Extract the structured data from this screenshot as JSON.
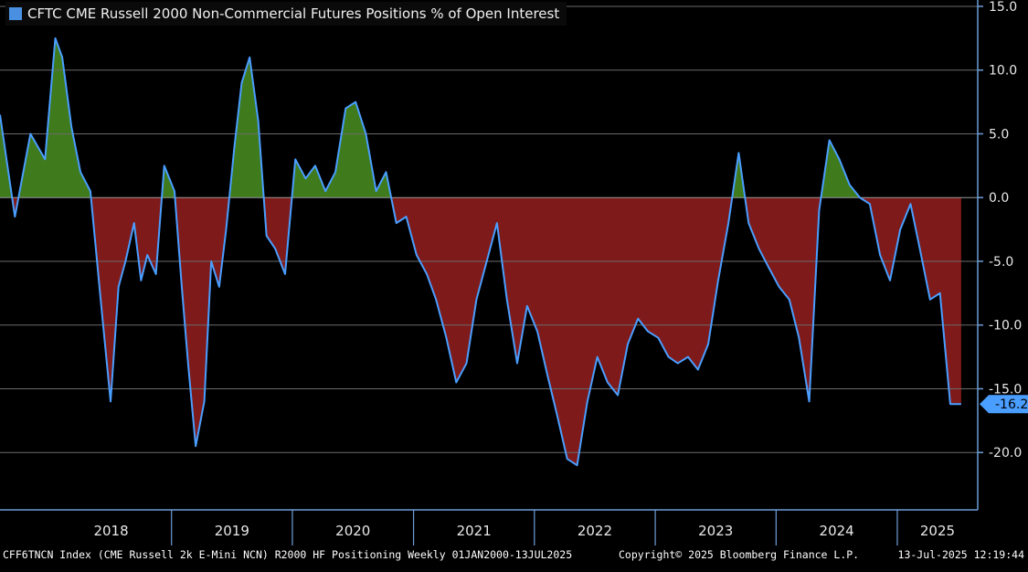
{
  "legend": {
    "label": "CFTC CME Russell 2000 Non-Commercial Futures Positions % of Open Interest",
    "color": "#4a90e2"
  },
  "footer": {
    "left": "CFF6TNCN Index (CME Russell 2k E-Mini NCN) R2000 HF Positioning  Weekly 01JAN2000-13JUL2025",
    "center": "Copyright© 2025 Bloomberg Finance L.P.",
    "right": "13-Jul-2025 12:19:44"
  },
  "last_value_label": "-16.2",
  "colors": {
    "line": "#4a9eff",
    "positive_fill": "#3f7a1c",
    "negative_fill": "#7f1a1a",
    "axis": "#6e9ed8",
    "grid": "#6a6a6a",
    "badge": "#4a9eff"
  },
  "chart_data": {
    "type": "area",
    "title": "CFTC CME Russell 2000 Non-Commercial Futures Positions % of Open Interest",
    "xlabel": "",
    "ylabel": "",
    "ylim": [
      -24.5,
      15.5
    ],
    "y_ticks": [
      15,
      10,
      5,
      0,
      -5,
      -10,
      -15,
      -20
    ],
    "y_tick_labels": [
      "15.0",
      "10.0",
      "5.0",
      "0.0",
      "-5.0",
      "-10.0",
      "-15.0",
      "-20.0"
    ],
    "x_range": [
      "2017-08-01",
      "2025-09-01"
    ],
    "years": [
      "2018",
      "2019",
      "2020",
      "2021",
      "2022",
      "2023",
      "2024",
      "2025"
    ],
    "grid": true,
    "series": [
      {
        "name": "CFTC CME Russell 2000 Non-Commercial Futures Positions % of Open Interest",
        "x": [
          "2017-08-01",
          "2017-09-15",
          "2017-11-01",
          "2017-12-15",
          "2018-01-15",
          "2018-02-05",
          "2018-03-05",
          "2018-04-01",
          "2018-05-01",
          "2018-06-01",
          "2018-07-01",
          "2018-07-25",
          "2018-08-15",
          "2018-09-10",
          "2018-10-01",
          "2018-10-20",
          "2018-11-15",
          "2018-12-10",
          "2019-01-10",
          "2019-02-01",
          "2019-02-20",
          "2019-03-15",
          "2019-04-10",
          "2019-05-01",
          "2019-05-25",
          "2019-06-15",
          "2019-07-10",
          "2019-08-01",
          "2019-08-25",
          "2019-09-20",
          "2019-10-15",
          "2019-11-10",
          "2019-12-10",
          "2020-01-10",
          "2020-02-10",
          "2020-03-10",
          "2020-04-10",
          "2020-05-10",
          "2020-06-10",
          "2020-07-10",
          "2020-08-10",
          "2020-09-10",
          "2020-10-10",
          "2020-11-10",
          "2020-12-10",
          "2021-01-10",
          "2021-02-10",
          "2021-03-10",
          "2021-04-10",
          "2021-05-10",
          "2021-06-10",
          "2021-07-10",
          "2021-08-10",
          "2021-09-10",
          "2021-10-10",
          "2021-11-10",
          "2021-12-10",
          "2022-01-10",
          "2022-02-10",
          "2022-03-10",
          "2022-04-10",
          "2022-05-10",
          "2022-06-10",
          "2022-07-10",
          "2022-08-10",
          "2022-09-10",
          "2022-10-10",
          "2022-11-10",
          "2022-12-10",
          "2023-01-10",
          "2023-02-10",
          "2023-03-10",
          "2023-04-10",
          "2023-05-10",
          "2023-06-10",
          "2023-07-10",
          "2023-08-10",
          "2023-09-10",
          "2023-10-10",
          "2023-11-10",
          "2023-12-10",
          "2024-01-10",
          "2024-02-10",
          "2024-03-10",
          "2024-04-10",
          "2024-05-10",
          "2024-06-10",
          "2024-07-10",
          "2024-08-10",
          "2024-09-10",
          "2024-10-10",
          "2024-11-10",
          "2024-12-10",
          "2025-01-10",
          "2025-02-10",
          "2025-03-10",
          "2025-04-10",
          "2025-05-10",
          "2025-06-10",
          "2025-07-13"
        ],
        "values": [
          6.5,
          -1.5,
          5.0,
          3.0,
          12.5,
          11.0,
          5.5,
          2.0,
          0.5,
          -8.0,
          -16.0,
          -7.0,
          -5.0,
          -2.0,
          -6.5,
          -4.5,
          -6.0,
          2.5,
          0.5,
          -7.0,
          -13.0,
          -19.5,
          -16.0,
          -5.0,
          -7.0,
          -2.5,
          4.0,
          9.0,
          11.0,
          6.0,
          -3.0,
          -4.0,
          -6.0,
          3.0,
          1.5,
          2.5,
          0.5,
          2.0,
          7.0,
          7.5,
          5.0,
          0.5,
          2.0,
          -2.0,
          -1.5,
          -4.5,
          -6.0,
          -8.0,
          -11.0,
          -14.5,
          -13.0,
          -8.0,
          -5.0,
          -2.0,
          -8.0,
          -13.0,
          -8.5,
          -10.5,
          -14.0,
          -17.0,
          -20.5,
          -21.0,
          -16.0,
          -12.5,
          -14.5,
          -15.5,
          -11.5,
          -9.5,
          -10.5,
          -11.0,
          -12.5,
          -13.0,
          -12.5,
          -13.5,
          -11.5,
          -6.5,
          -2.0,
          3.5,
          -2.0,
          -4.0,
          -5.5,
          -7.0,
          -8.0,
          -11.0,
          -16.0,
          -1.0,
          4.5,
          3.0,
          1.0,
          0.0,
          -0.5,
          -4.5,
          -6.5,
          -2.5,
          -0.5,
          -4.0,
          -8.0,
          -7.5,
          -16.2,
          -16.2
        ]
      }
    ]
  }
}
